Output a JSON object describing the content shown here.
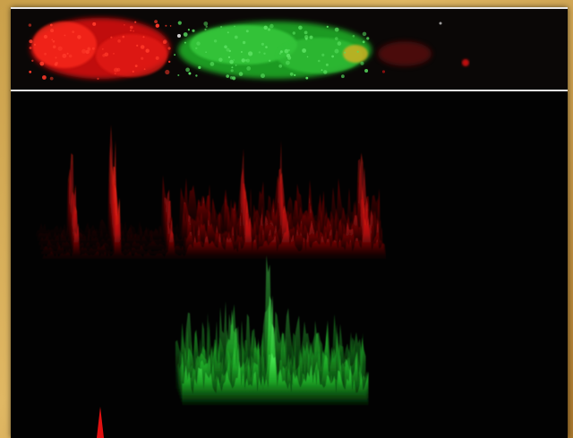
{
  "image": {
    "kind": "fluorescence micrograph with 3D intensity surface plots",
    "colors": {
      "frame": "#c99d48",
      "background": "#050505",
      "red_channel": "#e01010",
      "green_channel": "#22c02a",
      "divider": "#e8e8e8"
    },
    "panels": [
      "micrograph-strip",
      "red-intensity-profile",
      "green-intensity-profile"
    ]
  }
}
